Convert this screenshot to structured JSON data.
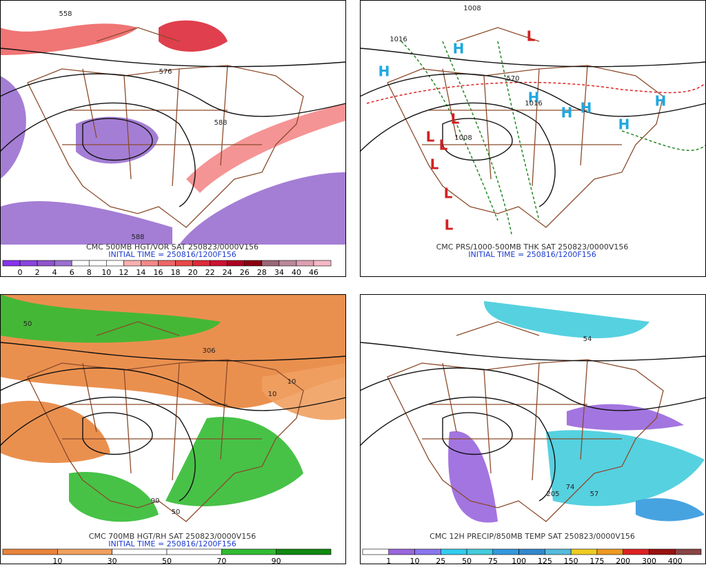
{
  "panels": [
    {
      "title": "CMC 500MB HGT/VOR SAT 250823/0000V156",
      "init": "INITIAL TIME = 250816/1200F156",
      "colorbar": {
        "labels": [
          0,
          2,
          4,
          6,
          8,
          10,
          12,
          14,
          16,
          18,
          20,
          22,
          24,
          26,
          28,
          34,
          40,
          46
        ],
        "colors": [
          "#8833ee",
          "#8a44dd",
          "#9055cc",
          "#9a70d0",
          "#ffffff",
          "#ffffff",
          "#ffffff",
          "#f8b0b0",
          "#f48888",
          "#ee6666",
          "#e84848",
          "#dd2a3a",
          "#cc1133",
          "#aa0022",
          "#880011",
          "#996677",
          "#bb8899",
          "#dda0b0",
          "#f4b8c4"
        ]
      },
      "map_labels": [
        "558",
        "576",
        "588",
        "588"
      ]
    },
    {
      "title": "CMC PRS/1000-500MB THK SAT 250823/0000V156",
      "init": "INITIAL TIME = 250816/1200F156",
      "map_labels": [
        "H",
        "H",
        "H",
        "H",
        "H",
        "H",
        "H",
        "L",
        "L",
        "L",
        "L",
        "L",
        "L",
        "L",
        "1016",
        "1008",
        "1008",
        "1016",
        "570"
      ]
    },
    {
      "title": "CMC 700MB HGT/RH SAT 250823/0000V156",
      "init": "INITIAL TIME = 250816/1200F156",
      "colorbar": {
        "labels": [
          10,
          30,
          50,
          70,
          90
        ],
        "colors": [
          "#e8843c",
          "#f0a060",
          "#ffffff",
          "#ffffff",
          "#33bb33",
          "#118811"
        ]
      },
      "map_labels": [
        "50",
        "10",
        "90",
        "50",
        "10",
        "306"
      ]
    },
    {
      "title": "CMC 12H PRECIP/850MB TEMP SAT 250823/0000V156",
      "colorbar": {
        "labels": [
          1,
          10,
          25,
          50,
          75,
          100,
          125,
          150,
          175,
          200,
          300,
          400
        ],
        "colors": [
          "#ffffff",
          "#9966dd",
          "#8877ee",
          "#33ccee",
          "#44ccdd",
          "#3399dd",
          "#3388cc",
          "#55bbdd",
          "#eecc22",
          "#ee9922",
          "#dd2222",
          "#991111",
          "#884444"
        ]
      },
      "map_labels": [
        "54",
        "205",
        "74",
        "57"
      ]
    }
  ]
}
